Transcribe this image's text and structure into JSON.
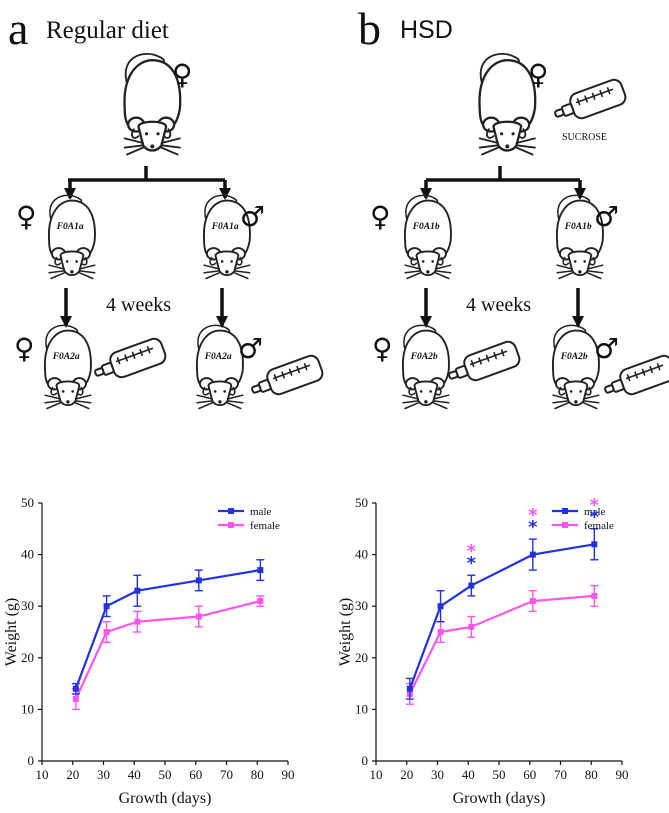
{
  "panels": {
    "a": {
      "letter": "a",
      "title": "Regular diet"
    },
    "b": {
      "letter": "b",
      "title": "HSD",
      "bottle_label": "SUCROSE"
    }
  },
  "timeline": "4 weeks",
  "mice": {
    "a_f1": "F0A1a",
    "a_m1": "F0A1a",
    "a_f2": "F0A2a",
    "a_m2": "F0A2a",
    "b_f1": "F0A1b",
    "b_m1": "F0A1b",
    "b_f2": "F0A2b",
    "b_m2": "F0A2b"
  },
  "symbols": {
    "female": "♀",
    "male": "♂"
  },
  "colors": {
    "male": "#2233dd",
    "female": "#ff55ee",
    "axis": "#111111"
  },
  "chart_data": [
    {
      "type": "line",
      "xlabel": "Growth (days)",
      "ylabel": "Weight (g)",
      "xlim": [
        10,
        90
      ],
      "ylim": [
        0,
        50
      ],
      "xticks": [
        10,
        20,
        30,
        40,
        50,
        60,
        70,
        80,
        90
      ],
      "yticks": [
        0,
        10,
        20,
        30,
        40,
        50
      ],
      "legend": "top-right",
      "series": [
        {
          "name": "male",
          "x": [
            21,
            31,
            41,
            61,
            81
          ],
          "y": [
            14,
            30,
            33,
            35,
            37
          ],
          "err": [
            1,
            2,
            3,
            2,
            2
          ]
        },
        {
          "name": "female",
          "x": [
            21,
            31,
            41,
            61,
            81
          ],
          "y": [
            12,
            25,
            27,
            28,
            31
          ],
          "err": [
            2,
            2,
            2,
            2,
            1
          ]
        }
      ],
      "annotations": []
    },
    {
      "type": "line",
      "xlabel": "Growth (days)",
      "ylabel": "Weight (g)",
      "xlim": [
        10,
        90
      ],
      "ylim": [
        0,
        50
      ],
      "xticks": [
        10,
        20,
        30,
        40,
        50,
        60,
        70,
        80,
        90
      ],
      "yticks": [
        0,
        10,
        20,
        30,
        40,
        50
      ],
      "legend": "top-right",
      "series": [
        {
          "name": "male",
          "x": [
            21,
            31,
            41,
            61,
            81
          ],
          "y": [
            14,
            30,
            34,
            40,
            42
          ],
          "err": [
            2,
            3,
            2,
            3,
            3
          ]
        },
        {
          "name": "female",
          "x": [
            21,
            31,
            41,
            61,
            81
          ],
          "y": [
            13,
            25,
            26,
            31,
            32
          ],
          "err": [
            2,
            2,
            2,
            2,
            2
          ]
        }
      ],
      "annotations": [
        {
          "x": 41,
          "text": "**"
        },
        {
          "x": 61,
          "text": "**"
        },
        {
          "x": 81,
          "text": "**"
        }
      ]
    }
  ]
}
